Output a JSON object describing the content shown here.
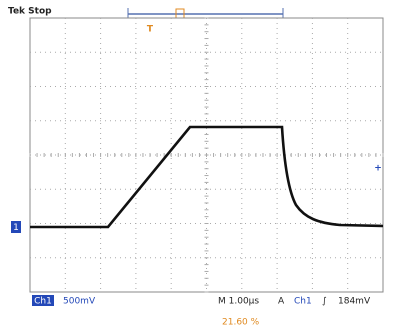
{
  "header": {
    "status": "Tek Stop"
  },
  "markers": {
    "trigger_position": "T",
    "channel": "1"
  },
  "footer": {
    "channel": "Ch1",
    "scale": "500mV",
    "timebase": "M 1.00µs",
    "trigger_mode": "A",
    "trigger_source": "Ch1",
    "trigger_slope": "∫",
    "trigger_level": "184mV",
    "position": "21.60 %"
  }
}
